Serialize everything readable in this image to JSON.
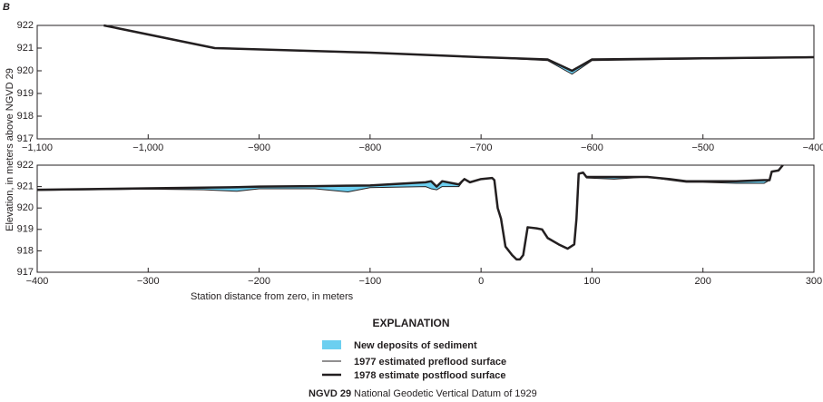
{
  "panel_label": "B",
  "ylabel": "Elevation, in meters above NGVD 29",
  "xlabel": "Station distance from zero, in meters",
  "legend": {
    "title": "EXPLANATION"
  },
  "note": {
    "abbr": "NGVD 29",
    "text": "National Geodetic Vertical Datum of 1929"
  },
  "chart_data": [
    {
      "type": "profile",
      "xlim": [
        -1100,
        -400
      ],
      "ylim": [
        917,
        922
      ],
      "xticks": [
        {
          "value": -1100,
          "label": "−1,100"
        },
        {
          "value": -1000,
          "label": "−1,000"
        },
        {
          "value": -900,
          "label": "−900"
        },
        {
          "value": -800,
          "label": "−800"
        },
        {
          "value": -700,
          "label": "−700"
        },
        {
          "value": -600,
          "label": "−600"
        },
        {
          "value": -500,
          "label": "−500"
        },
        {
          "value": -400,
          "label": "−400"
        }
      ],
      "yticks": [
        917,
        918,
        919,
        920,
        921,
        922
      ],
      "fill": {
        "name": "New deposits of sediment",
        "color": "#6ccff0"
      },
      "x": [
        -1040,
        -940,
        -800,
        -700,
        -640,
        -618,
        -600,
        -500,
        -400
      ],
      "series": [
        {
          "name": "1977 estimated preflood surface",
          "color": "#231f20",
          "linewidth": 1,
          "values": [
            922,
            921,
            920.8,
            920.6,
            920.45,
            919.85,
            920.45,
            920.52,
            920.58
          ]
        },
        {
          "name": "1978 estimate postflood surface",
          "color": "#231f20",
          "linewidth": 2.5,
          "values": [
            922,
            921,
            920.8,
            920.6,
            920.5,
            920.0,
            920.5,
            920.55,
            920.6
          ]
        }
      ]
    },
    {
      "type": "profile",
      "xlim": [
        -400,
        300
      ],
      "ylim": [
        917,
        922
      ],
      "xticks": [
        {
          "value": -400,
          "label": "−400"
        },
        {
          "value": -300,
          "label": "−300"
        },
        {
          "value": -200,
          "label": "−200"
        },
        {
          "value": -100,
          "label": "−100"
        },
        0,
        100,
        200,
        300
      ],
      "yticks": [
        917,
        918,
        919,
        920,
        921,
        922
      ],
      "fill": {
        "name": "New deposits of sediment",
        "color": "#6ccff0"
      },
      "x": [
        -400,
        -300,
        -250,
        -220,
        -200,
        -150,
        -120,
        -100,
        -50,
        -45,
        -40,
        -35,
        -20,
        -15,
        -10,
        0,
        10,
        12,
        15,
        18,
        22,
        28,
        32,
        35,
        38,
        42,
        50,
        55,
        60,
        70,
        78,
        84,
        86,
        88,
        92,
        95,
        120,
        150,
        170,
        185,
        200,
        230,
        255,
        260,
        262,
        268,
        272
      ],
      "series": [
        {
          "name": "1977 estimated preflood surface",
          "color": "#231f20",
          "linewidth": 1,
          "values": [
            920.82,
            920.88,
            920.85,
            920.78,
            920.9,
            920.9,
            920.75,
            920.95,
            921.0,
            920.9,
            920.85,
            921.0,
            921.0,
            921.35,
            921.2,
            921.35,
            921.4,
            921.3,
            920.0,
            919.5,
            918.2,
            917.8,
            917.6,
            917.6,
            917.8,
            919.1,
            919.05,
            919.0,
            918.6,
            918.3,
            918.1,
            918.3,
            919.5,
            921.6,
            921.65,
            921.4,
            921.35,
            921.45,
            921.3,
            921.2,
            921.2,
            921.15,
            921.15,
            921.3,
            921.7,
            921.75,
            922
          ]
        },
        {
          "name": "1978 estimate postflood surface",
          "color": "#231f20",
          "linewidth": 2.5,
          "values": [
            920.85,
            920.92,
            920.95,
            920.97,
            921.0,
            921.02,
            921.04,
            921.05,
            921.2,
            921.25,
            921.0,
            921.25,
            921.1,
            921.35,
            921.2,
            921.35,
            921.4,
            921.3,
            920.0,
            919.5,
            918.2,
            917.8,
            917.6,
            917.6,
            917.8,
            919.1,
            919.05,
            919.0,
            918.6,
            918.3,
            918.1,
            918.3,
            919.5,
            921.6,
            921.65,
            921.45,
            921.45,
            921.45,
            921.35,
            921.25,
            921.25,
            921.25,
            921.3,
            921.3,
            921.7,
            921.75,
            922
          ]
        }
      ]
    }
  ]
}
